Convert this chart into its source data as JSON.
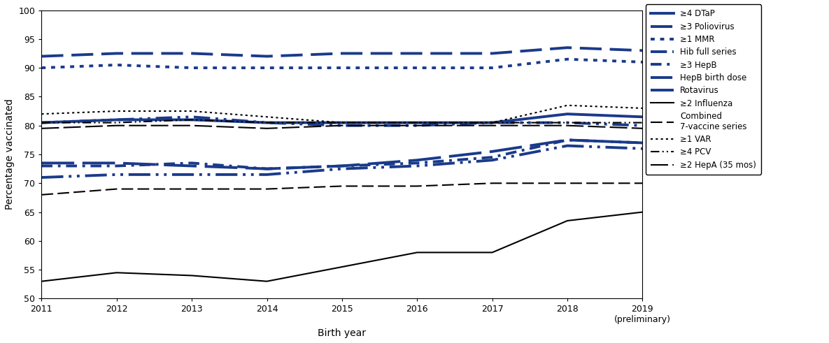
{
  "years": [
    2011,
    2012,
    2013,
    2014,
    2015,
    2016,
    2017,
    2018,
    2019
  ],
  "series": [
    {
      "key": "DTaP",
      "values": [
        80.5,
        81.0,
        81.0,
        80.5,
        80.5,
        80.5,
        80.5,
        82.0,
        81.5
      ],
      "color": "#1a3a8a",
      "ls_type": "solid",
      "linewidth": 2.8,
      "label": "≥4 DTaP"
    },
    {
      "key": "Poliovirus",
      "values": [
        92.0,
        92.5,
        92.5,
        92.0,
        92.5,
        92.5,
        92.5,
        93.5,
        93.0
      ],
      "color": "#1a3a8a",
      "ls_type": "dashed_long",
      "linewidth": 2.8,
      "label": "≥3 Poliovirus"
    },
    {
      "key": "MMR",
      "values": [
        90.0,
        90.5,
        90.0,
        90.0,
        90.0,
        90.0,
        90.0,
        91.5,
        91.0
      ],
      "color": "#1a3a8a",
      "ls_type": "dotted",
      "linewidth": 2.8,
      "label": "≥1 MMR"
    },
    {
      "key": "Hib",
      "values": [
        80.5,
        81.0,
        81.5,
        80.5,
        80.0,
        80.0,
        80.5,
        80.5,
        80.0
      ],
      "color": "#1a3a8a",
      "ls_type": "dashdot2",
      "linewidth": 2.8,
      "label": "Hib full series"
    },
    {
      "key": "HepB",
      "values": [
        73.0,
        73.0,
        73.5,
        72.5,
        73.0,
        73.5,
        74.5,
        77.5,
        77.0
      ],
      "color": "#1a3a8a",
      "ls_type": "dashdot_short",
      "linewidth": 2.8,
      "label": "≥3 HepB"
    },
    {
      "key": "HepBbirth",
      "values": [
        71.0,
        71.5,
        71.5,
        71.5,
        72.5,
        73.0,
        74.0,
        76.5,
        76.0
      ],
      "color": "#1a3a8a",
      "ls_type": "dashdotdot",
      "linewidth": 2.8,
      "label": "HepB birth dose"
    },
    {
      "key": "Rotavirus",
      "values": [
        73.5,
        73.5,
        73.0,
        72.5,
        73.0,
        74.0,
        75.5,
        77.5,
        77.0
      ],
      "color": "#1a3a8a",
      "ls_type": "dashed_vlong",
      "linewidth": 2.8,
      "label": "Rotavirus"
    },
    {
      "key": "Influenza",
      "values": [
        53.0,
        54.5,
        54.0,
        53.0,
        55.5,
        58.0,
        58.0,
        63.5,
        65.0
      ],
      "color": "#000000",
      "ls_type": "solid",
      "linewidth": 1.5,
      "label": "≥2 Influenza"
    },
    {
      "key": "Combined",
      "values": [
        68.0,
        69.0,
        69.0,
        69.0,
        69.5,
        69.5,
        70.0,
        70.0,
        70.0
      ],
      "color": "#000000",
      "ls_type": "dashed_long",
      "linewidth": 1.5,
      "label": "Combined\n7-vaccine series"
    },
    {
      "key": "VAR",
      "values": [
        82.0,
        82.5,
        82.5,
        81.5,
        80.5,
        80.5,
        80.5,
        83.5,
        83.0
      ],
      "color": "#000000",
      "ls_type": "dotted",
      "linewidth": 1.5,
      "label": "≥1 VAR"
    },
    {
      "key": "PCV",
      "values": [
        80.5,
        80.5,
        81.0,
        80.5,
        80.5,
        80.5,
        80.5,
        80.5,
        80.5
      ],
      "color": "#000000",
      "ls_type": "dashdot2",
      "linewidth": 1.5,
      "label": "≥4 PCV"
    },
    {
      "key": "HepA",
      "values": [
        79.5,
        80.0,
        80.0,
        79.5,
        80.0,
        80.0,
        80.0,
        80.0,
        79.5
      ],
      "color": "#000000",
      "ls_type": "dashed_vlong",
      "linewidth": 1.5,
      "label": "≥2 HepA (35 mos)"
    }
  ],
  "xlim": [
    2011,
    2019
  ],
  "ylim": [
    50,
    100
  ],
  "yticks": [
    50,
    55,
    60,
    65,
    70,
    75,
    80,
    85,
    90,
    95,
    100
  ],
  "xticks": [
    2011,
    2012,
    2013,
    2014,
    2015,
    2016,
    2017,
    2018,
    2019
  ],
  "xlabel": "Birth year",
  "ylabel": "Percentage vaccinated"
}
